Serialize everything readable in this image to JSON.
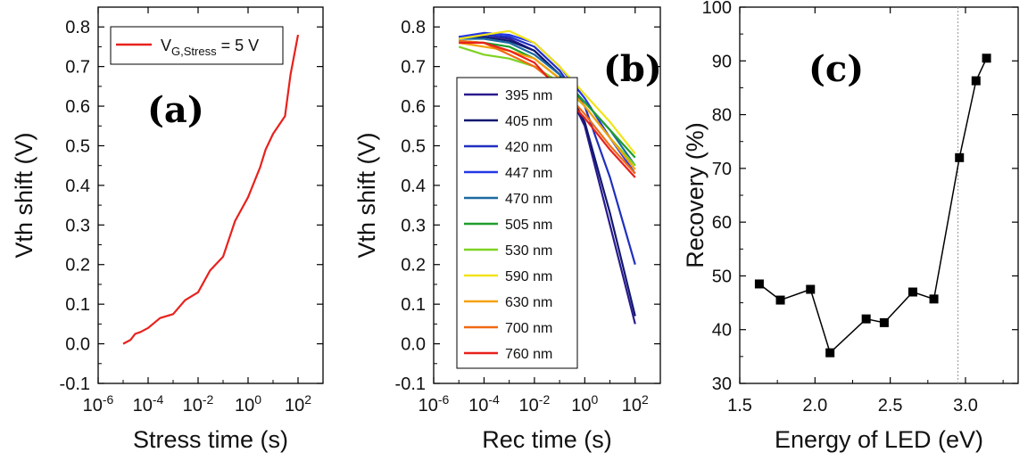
{
  "chart_data": [
    {
      "id": "a",
      "type": "line",
      "panel_label": "(a)",
      "xlabel": "Stress time (s)",
      "ylabel": "Vth shift (V)",
      "xscale": "log",
      "xlim": [
        1e-06,
        1000
      ],
      "ylim": [
        -0.1,
        0.85
      ],
      "x_ticks": [
        {
          "value": 1e-06,
          "base": "10",
          "exp": "-6"
        },
        {
          "value": 0.0001,
          "base": "10",
          "exp": "-4"
        },
        {
          "value": 0.01,
          "base": "10",
          "exp": "-2"
        },
        {
          "value": 1,
          "base": "10",
          "exp": "0"
        },
        {
          "value": 100,
          "base": "10",
          "exp": "2"
        }
      ],
      "y_ticks": [
        {
          "value": -0.1,
          "label": "-0.1"
        },
        {
          "value": 0.0,
          "label": "0.0"
        },
        {
          "value": 0.1,
          "label": "0.1"
        },
        {
          "value": 0.2,
          "label": "0.2"
        },
        {
          "value": 0.3,
          "label": "0.3"
        },
        {
          "value": 0.4,
          "label": "0.4"
        },
        {
          "value": 0.5,
          "label": "0.5"
        },
        {
          "value": 0.6,
          "label": "0.6"
        },
        {
          "value": 0.7,
          "label": "0.7"
        },
        {
          "value": 0.8,
          "label": "0.8"
        }
      ],
      "legend": {
        "position": "top-left",
        "main": "V",
        "sub": "G,Stress",
        "rest": " = 5 V"
      },
      "series": [
        {
          "name": "VG,Stress = 5 V",
          "color": "#e8211d",
          "x": [
            1e-05,
            2e-05,
            3e-05,
            5e-05,
            0.0001,
            0.0003,
            0.001,
            0.003,
            0.01,
            0.03,
            0.1,
            0.3,
            1,
            3,
            5,
            10,
            30,
            50,
            100
          ],
          "y": [
            0.0,
            0.01,
            0.025,
            0.03,
            0.04,
            0.065,
            0.075,
            0.11,
            0.13,
            0.185,
            0.22,
            0.31,
            0.37,
            0.445,
            0.49,
            0.53,
            0.575,
            0.68,
            0.78
          ]
        }
      ]
    },
    {
      "id": "b",
      "type": "line",
      "panel_label": "(b)",
      "xlabel": "Rec time (s)",
      "ylabel": "Vth shift (V)",
      "xscale": "log",
      "xlim": [
        1e-06,
        1000
      ],
      "ylim": [
        -0.1,
        0.85
      ],
      "x_ticks": [
        {
          "value": 1e-06,
          "base": "10",
          "exp": "-6"
        },
        {
          "value": 0.0001,
          "base": "10",
          "exp": "-4"
        },
        {
          "value": 0.01,
          "base": "10",
          "exp": "-2"
        },
        {
          "value": 1,
          "base": "10",
          "exp": "0"
        },
        {
          "value": 100,
          "base": "10",
          "exp": "2"
        }
      ],
      "y_ticks": [
        {
          "value": -0.1,
          "label": "-0.1"
        },
        {
          "value": 0.0,
          "label": "0.0"
        },
        {
          "value": 0.1,
          "label": "0.1"
        },
        {
          "value": 0.2,
          "label": "0.2"
        },
        {
          "value": 0.3,
          "label": "0.3"
        },
        {
          "value": 0.4,
          "label": "0.4"
        },
        {
          "value": 0.5,
          "label": "0.5"
        },
        {
          "value": 0.6,
          "label": "0.6"
        },
        {
          "value": 0.7,
          "label": "0.7"
        },
        {
          "value": 0.8,
          "label": "0.8"
        }
      ],
      "legend": {
        "position": "lower-left"
      },
      "x": [
        1e-05,
        0.0001,
        0.001,
        0.01,
        0.1,
        1,
        10,
        100
      ],
      "series": [
        {
          "name": "395 nm",
          "color": "#2a1a8c",
          "values": [
            0.775,
            0.78,
            0.77,
            0.74,
            0.68,
            0.55,
            0.3,
            0.05
          ]
        },
        {
          "name": "405 nm",
          "color": "#101870",
          "values": [
            0.77,
            0.775,
            0.765,
            0.74,
            0.68,
            0.56,
            0.33,
            0.07
          ]
        },
        {
          "name": "420 nm",
          "color": "#1f2fbf",
          "values": [
            0.77,
            0.78,
            0.775,
            0.75,
            0.69,
            0.6,
            0.42,
            0.2
          ]
        },
        {
          "name": "447 nm",
          "color": "#2438e6",
          "values": [
            0.775,
            0.785,
            0.78,
            0.76,
            0.7,
            0.62,
            0.52,
            0.43
          ]
        },
        {
          "name": "470 nm",
          "color": "#1b6aa0",
          "values": [
            0.77,
            0.77,
            0.76,
            0.73,
            0.68,
            0.61,
            0.54,
            0.45
          ]
        },
        {
          "name": "505 nm",
          "color": "#1f9e2a",
          "values": [
            0.765,
            0.76,
            0.75,
            0.72,
            0.67,
            0.61,
            0.54,
            0.47
          ]
        },
        {
          "name": "530 nm",
          "color": "#7ed321",
          "values": [
            0.75,
            0.73,
            0.72,
            0.7,
            0.66,
            0.6,
            0.52,
            0.45
          ]
        },
        {
          "name": "590 nm",
          "color": "#f2e41a",
          "values": [
            0.77,
            0.78,
            0.79,
            0.76,
            0.7,
            0.63,
            0.56,
            0.48
          ]
        },
        {
          "name": "630 nm",
          "color": "#f5a20a",
          "values": [
            0.76,
            0.75,
            0.74,
            0.72,
            0.67,
            0.6,
            0.52,
            0.44
          ]
        },
        {
          "name": "700 nm",
          "color": "#f06a14",
          "values": [
            0.765,
            0.76,
            0.73,
            0.7,
            0.65,
            0.58,
            0.5,
            0.43
          ]
        },
        {
          "name": "760 nm",
          "color": "#e8211d",
          "values": [
            0.76,
            0.76,
            0.74,
            0.71,
            0.64,
            0.57,
            0.49,
            0.42
          ]
        }
      ]
    },
    {
      "id": "c",
      "type": "line",
      "panel_label": "(c)",
      "xlabel": "Energy of LED (eV)",
      "ylabel": "Recovery (%)",
      "xscale": "linear",
      "xlim": [
        1.5,
        3.35
      ],
      "ylim": [
        30,
        100
      ],
      "x_ticks": [
        {
          "value": 1.5,
          "label": "1.5"
        },
        {
          "value": 2.0,
          "label": "2.0"
        },
        {
          "value": 2.5,
          "label": "2.5"
        },
        {
          "value": 3.0,
          "label": "3.0"
        }
      ],
      "y_ticks": [
        {
          "value": 30,
          "label": "30"
        },
        {
          "value": 40,
          "label": "40"
        },
        {
          "value": 50,
          "label": "50"
        },
        {
          "value": 60,
          "label": "60"
        },
        {
          "value": 70,
          "label": "70"
        },
        {
          "value": 80,
          "label": "80"
        },
        {
          "value": 90,
          "label": "90"
        },
        {
          "value": 100,
          "label": "100"
        }
      ],
      "vline": 2.95,
      "series": [
        {
          "name": "Recovery",
          "color": "#000000",
          "marker": "square",
          "x": [
            1.63,
            1.77,
            1.97,
            2.1,
            2.34,
            2.46,
            2.65,
            2.79,
            2.96,
            3.07,
            3.14
          ],
          "y": [
            48.5,
            45.5,
            47.5,
            35.7,
            42.0,
            41.3,
            47.0,
            45.7,
            72.0,
            86.3,
            90.5
          ]
        }
      ]
    }
  ]
}
